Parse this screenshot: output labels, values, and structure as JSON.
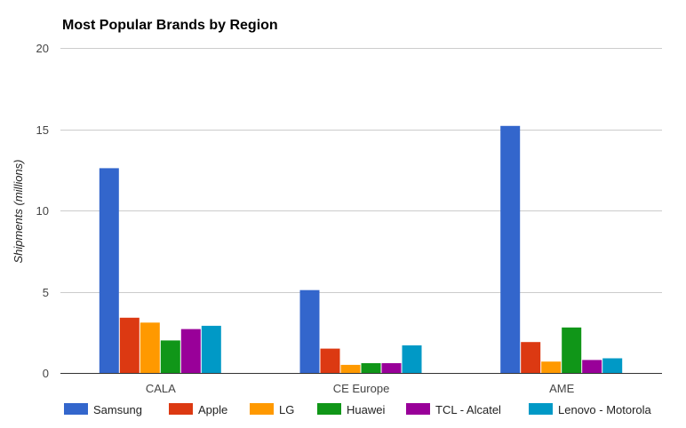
{
  "chart_data": {
    "type": "bar",
    "title": "Most Popular Brands by Region",
    "xlabel": "",
    "ylabel": "Shipments (millions)",
    "ylim": [
      0,
      20
    ],
    "yticks": [
      0,
      5,
      10,
      15,
      20
    ],
    "grid": true,
    "legend_position": "bottom",
    "categories": [
      "CALA",
      "CE Europe",
      "AME"
    ],
    "series": [
      {
        "name": "Samsung",
        "color": "#3366cc",
        "values": [
          12.6,
          5.1,
          15.2
        ]
      },
      {
        "name": "Apple",
        "color": "#dc3912",
        "values": [
          3.4,
          1.5,
          1.9
        ]
      },
      {
        "name": "LG",
        "color": "#ff9900",
        "values": [
          3.1,
          0.5,
          0.7
        ]
      },
      {
        "name": "Huawei",
        "color": "#109618",
        "values": [
          2.0,
          0.6,
          2.8
        ]
      },
      {
        "name": "TCL - Alcatel",
        "color": "#990099",
        "values": [
          2.7,
          0.6,
          0.8
        ]
      },
      {
        "name": "Lenovo - Motorola",
        "color": "#0099c6",
        "values": [
          2.9,
          1.7,
          0.9
        ]
      }
    ]
  }
}
